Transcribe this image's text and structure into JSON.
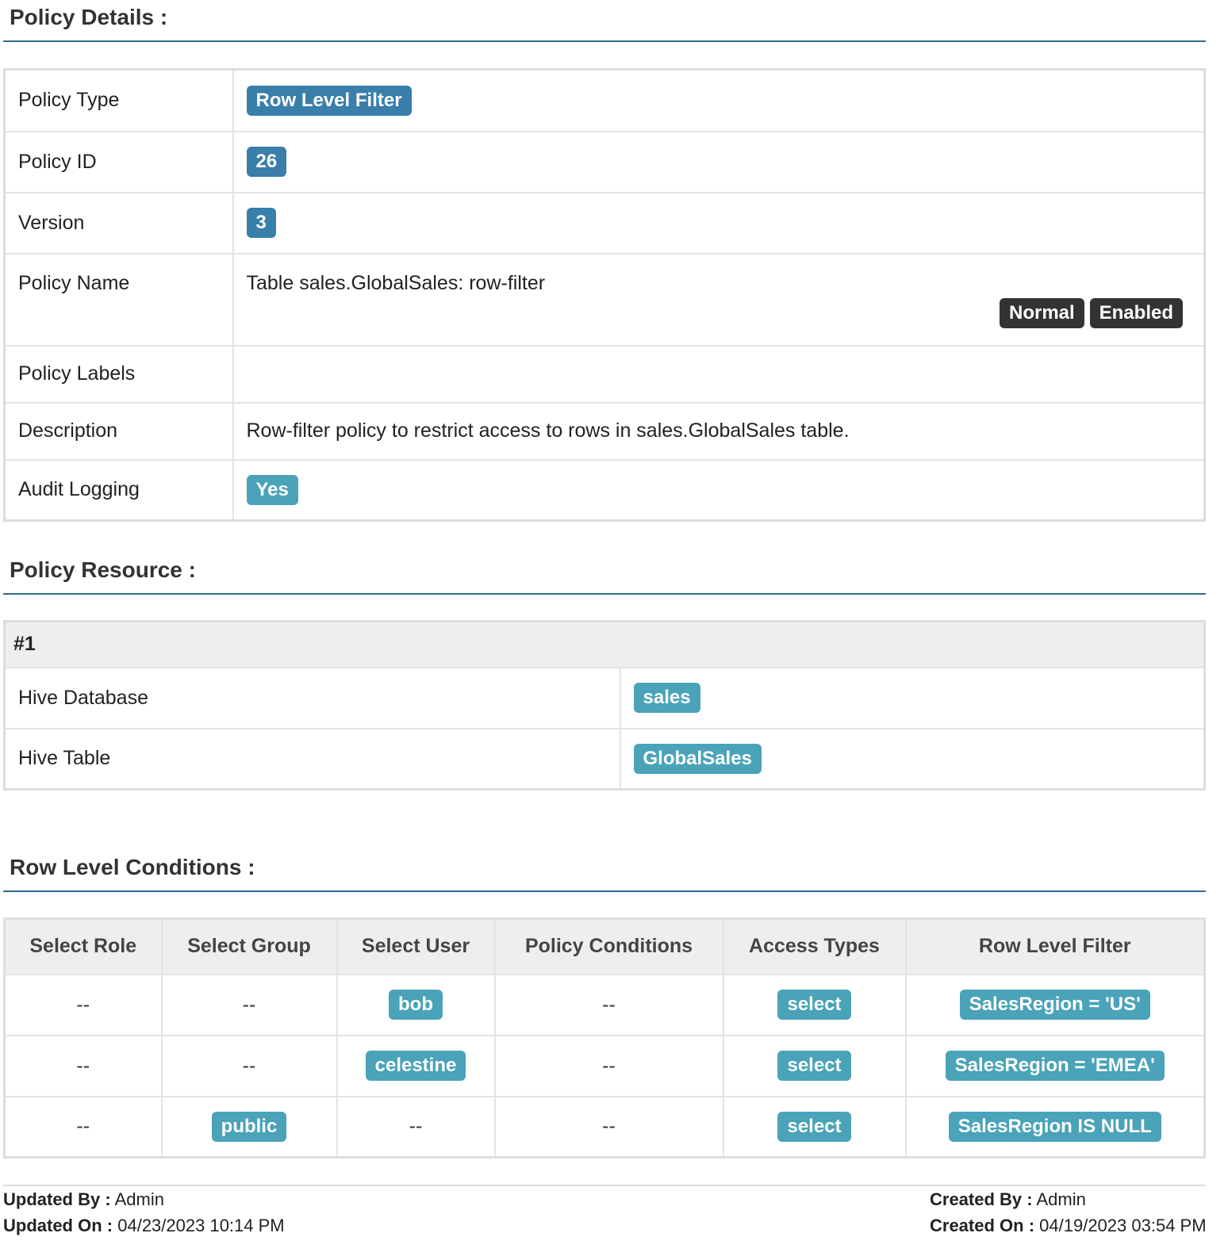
{
  "sections": {
    "details": "Policy Details :",
    "resource": "Policy Resource :",
    "conditions": "Row Level Conditions :"
  },
  "details": {
    "policy_type_label": "Policy Type",
    "policy_type": "Row Level Filter",
    "policy_id_label": "Policy ID",
    "policy_id": "26",
    "version_label": "Version",
    "version": "3",
    "policy_name_label": "Policy Name",
    "policy_name": "Table sales.GlobalSales: row-filter",
    "badge_normal": "Normal",
    "badge_enabled": "Enabled",
    "policy_labels_label": "Policy Labels",
    "description_label": "Description",
    "description": "Row-filter policy to restrict access to rows in sales.GlobalSales table.",
    "audit_label": "Audit Logging",
    "audit": "Yes"
  },
  "resource": {
    "header": "#1",
    "db_label": "Hive Database",
    "db": "sales",
    "table_label": "Hive Table",
    "table": "GlobalSales"
  },
  "conditions": {
    "headers": [
      "Select Role",
      "Select Group",
      "Select User",
      "Policy Conditions",
      "Access Types",
      "Row Level Filter"
    ],
    "rows": [
      [
        "--",
        "--",
        "bob",
        "--",
        "select",
        "SalesRegion = 'US'"
      ],
      [
        "--",
        "--",
        "celestine",
        "--",
        "select",
        "SalesRegion = 'EMEA'"
      ],
      [
        "--",
        "public",
        "--",
        "--",
        "select",
        "SalesRegion IS NULL"
      ]
    ]
  },
  "footer": {
    "updated_by_label": "Updated By :",
    "updated_by": "Admin",
    "updated_on_label": "Updated On :",
    "updated_on": "04/23/2023 10:14 PM",
    "created_by_label": "Created By :",
    "created_by": "Admin",
    "created_on_label": "Created On :",
    "created_on": "04/19/2023 03:54 PM"
  },
  "colors": {
    "primary": "#3a7eaa",
    "info": "#4aa3b8",
    "dark": "#333333"
  }
}
